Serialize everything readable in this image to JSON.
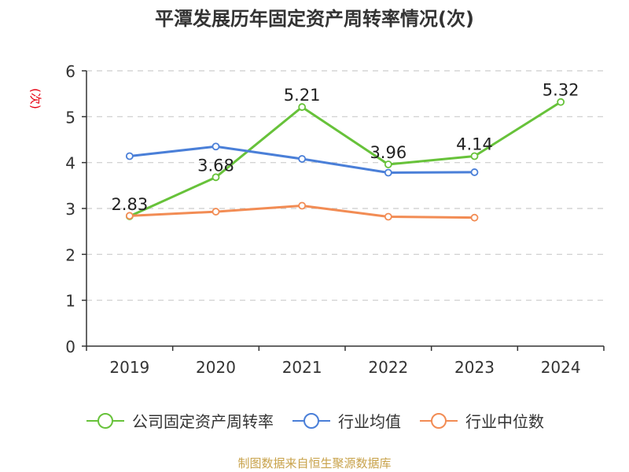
{
  "title": "平潭发展历年固定资产周转率情况(次)",
  "source": "制图数据来自恒生聚源数据库",
  "colors": {
    "company": "#67c23a",
    "industry_avg": "#4a7fd8",
    "industry_median": "#f28c54",
    "axis": "#333333",
    "grid": "#cccccc",
    "unit": "#e60012",
    "source": "#c8a24a"
  },
  "chart_data": {
    "type": "line",
    "title": "平潭发展历年固定资产周转率情况(次)",
    "ylabel": "(次)",
    "xlabel": "",
    "categories": [
      "2019",
      "2020",
      "2021",
      "2022",
      "2023",
      "2024"
    ],
    "ylim": [
      0,
      6
    ],
    "yticks": [
      0,
      1,
      2,
      3,
      4,
      5,
      6
    ],
    "grid": true,
    "legend_position": "bottom",
    "series": [
      {
        "name": "公司固定资产周转率",
        "values": [
          2.83,
          3.68,
          5.21,
          3.96,
          4.14,
          5.32
        ],
        "labels": [
          "2.83",
          "3.68",
          "5.21",
          "3.96",
          "4.14",
          "5.32"
        ],
        "color_key": "company"
      },
      {
        "name": "行业均值",
        "values": [
          4.14,
          4.35,
          4.08,
          3.78,
          3.79,
          null
        ],
        "color_key": "industry_avg"
      },
      {
        "name": "行业中位数",
        "values": [
          2.84,
          2.93,
          3.06,
          2.82,
          2.8,
          null
        ],
        "color_key": "industry_median"
      }
    ]
  }
}
